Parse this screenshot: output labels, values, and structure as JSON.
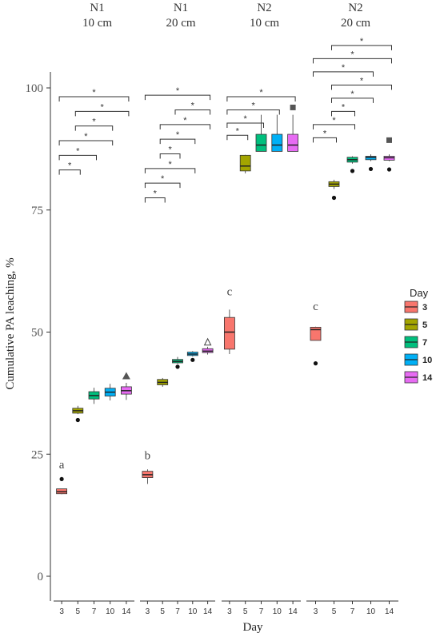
{
  "chart_data": {
    "type": "boxplot",
    "ylabel": "Cumulative PA leaching, %",
    "xlabel": "Day",
    "ylim": [
      0,
      100
    ],
    "yticks": [
      0,
      25,
      50,
      75,
      100
    ],
    "categories": [
      "3",
      "5",
      "7",
      "10",
      "14"
    ],
    "legend": {
      "title": "Day",
      "placement": "right",
      "entries": [
        "3",
        "5",
        "7",
        "10",
        "14"
      ]
    },
    "colors": {
      "3": "#F8766D",
      "5": "#A3A500",
      "7": "#00BF7D",
      "10": "#00B0F6",
      "14": "#E76BF3"
    },
    "panels": [
      {
        "title_line1": "N1",
        "title_line2": "10 cm",
        "boxes": [
          {
            "day": "3",
            "min": 16.8,
            "q1": 16.9,
            "median": 17.3,
            "q3": 17.9,
            "max": 17.9,
            "outliers": [
              19.9
            ]
          },
          {
            "day": "5",
            "min": 33.2,
            "q1": 33.4,
            "median": 33.9,
            "q3": 34.4,
            "max": 34.9,
            "outliers": [
              32.0
            ]
          },
          {
            "day": "7",
            "min": 35.3,
            "q1": 36.3,
            "median": 37.0,
            "q3": 37.8,
            "max": 38.6,
            "outliers": []
          },
          {
            "day": "10",
            "min": 36.0,
            "q1": 36.9,
            "median": 37.7,
            "q3": 38.5,
            "max": 39.4,
            "outliers": []
          },
          {
            "day": "14",
            "min": 36.1,
            "q1": 37.3,
            "median": 38.0,
            "q3": 38.8,
            "max": 39.6,
            "outliers": []
          }
        ],
        "markers": [
          {
            "day": "14",
            "y": 41.0,
            "shape": "triangle"
          }
        ],
        "letter": {
          "text": "a",
          "day": "3",
          "y": 22.1
        },
        "brackets": [
          {
            "from": "3",
            "to": "5",
            "y": 83.2,
            "label": "*"
          },
          {
            "from": "3",
            "to": "7",
            "y": 86.2,
            "label": "*"
          },
          {
            "from": "3",
            "to": "10",
            "y": 89.2,
            "label": "*"
          },
          {
            "from": "5",
            "to": "10",
            "y": 92.2,
            "label": "*"
          },
          {
            "from": "5",
            "to": "14",
            "y": 95.2,
            "label": "*"
          },
          {
            "from": "3",
            "to": "14",
            "y": 98.2,
            "label": "*"
          }
        ]
      },
      {
        "title_line1": "N1",
        "title_line2": "20 cm",
        "boxes": [
          {
            "day": "3",
            "min": 18.9,
            "q1": 20.2,
            "median": 20.8,
            "q3": 21.5,
            "max": 21.9,
            "outliers": []
          },
          {
            "day": "5",
            "min": 38.8,
            "q1": 39.2,
            "median": 39.7,
            "q3": 40.3,
            "max": 40.6,
            "outliers": []
          },
          {
            "day": "7",
            "min": 43.5,
            "q1": 43.7,
            "median": 44.0,
            "q3": 44.4,
            "max": 44.9,
            "outliers": [
              42.9
            ]
          },
          {
            "day": "10",
            "min": 45.0,
            "q1": 45.2,
            "median": 45.5,
            "q3": 45.9,
            "max": 46.1,
            "outliers": [
              44.3
            ]
          },
          {
            "day": "14",
            "min": 45.4,
            "q1": 45.8,
            "median": 46.1,
            "q3": 46.6,
            "max": 47.0,
            "outliers": []
          }
        ],
        "markers": [
          {
            "day": "14",
            "y": 48.0,
            "shape": "open-triangle"
          }
        ],
        "letter": {
          "text": "b",
          "day": "3",
          "y": 24.0
        },
        "brackets": [
          {
            "from": "3",
            "to": "5",
            "y": 77.5,
            "label": "*"
          },
          {
            "from": "3",
            "to": "7",
            "y": 80.5,
            "label": "*"
          },
          {
            "from": "3",
            "to": "10",
            "y": 83.5,
            "label": "*"
          },
          {
            "from": "5",
            "to": "7",
            "y": 86.5,
            "label": "*"
          },
          {
            "from": "5",
            "to": "10",
            "y": 89.5,
            "label": "*"
          },
          {
            "from": "5",
            "to": "14",
            "y": 92.5,
            "label": "*"
          },
          {
            "from": "7",
            "to": "14",
            "y": 95.5,
            "label": "*"
          },
          {
            "from": "3",
            "to": "14",
            "y": 98.5,
            "label": "*"
          }
        ]
      },
      {
        "title_line1": "N2",
        "title_line2": "10 cm",
        "boxes": [
          {
            "day": "3",
            "min": 45.5,
            "q1": 46.5,
            "median": 50.0,
            "q3": 53.0,
            "max": 54.6,
            "outliers": []
          },
          {
            "day": "5",
            "min": 82.5,
            "q1": 83.0,
            "median": 84.0,
            "q3": 86.2,
            "max": 86.3,
            "outliers": []
          },
          {
            "day": "7",
            "min": 87.0,
            "q1": 87.0,
            "median": 88.3,
            "q3": 90.5,
            "max": 94.5,
            "outliers": []
          },
          {
            "day": "10",
            "min": 87.0,
            "q1": 87.0,
            "median": 88.3,
            "q3": 90.5,
            "max": 94.5,
            "outliers": []
          },
          {
            "day": "14",
            "min": 87.0,
            "q1": 87.0,
            "median": 88.3,
            "q3": 90.5,
            "max": 94.5,
            "outliers": []
          }
        ],
        "markers": [
          {
            "day": "14",
            "y": 96.0,
            "shape": "square"
          }
        ],
        "letter": {
          "text": "c",
          "day": "3",
          "y": 57.5
        },
        "brackets": [
          {
            "from": "3",
            "to": "5",
            "y": 90.3,
            "label": "*"
          },
          {
            "from": "3",
            "to": "7",
            "y": 92.8,
            "label": "*"
          },
          {
            "from": "3",
            "to": "10",
            "y": 95.5,
            "label": "*"
          },
          {
            "from": "3",
            "to": "14",
            "y": 98.2,
            "label": "*"
          }
        ]
      },
      {
        "title_line1": "N2",
        "title_line2": "20 cm",
        "boxes": [
          {
            "day": "3",
            "min": 48.3,
            "q1": 48.3,
            "median": 50.5,
            "q3": 51.0,
            "max": 51.1,
            "outliers": [
              43.6
            ]
          },
          {
            "day": "5",
            "min": 79.3,
            "q1": 79.8,
            "median": 80.3,
            "q3": 80.8,
            "max": 81.2,
            "outliers": [
              77.5
            ]
          },
          {
            "day": "7",
            "min": 84.5,
            "q1": 84.8,
            "median": 85.3,
            "q3": 85.8,
            "max": 86.0,
            "outliers": [
              83.0
            ]
          },
          {
            "day": "10",
            "min": 85.0,
            "q1": 85.3,
            "median": 85.8,
            "q3": 86.0,
            "max": 86.4,
            "outliers": [
              83.4
            ]
          },
          {
            "day": "14",
            "min": 85.0,
            "q1": 85.2,
            "median": 85.7,
            "q3": 86.0,
            "max": 86.4,
            "outliers": [
              83.3
            ]
          }
        ],
        "markers": [
          {
            "day": "14",
            "y": 89.3,
            "shape": "square"
          }
        ],
        "letter": {
          "text": "c",
          "day": "3",
          "y": 54.5
        },
        "brackets": [
          {
            "from": "3",
            "to": "5",
            "y": 89.8,
            "label": "*"
          },
          {
            "from": "3",
            "to": "7",
            "y": 92.5,
            "label": "*"
          },
          {
            "from": "5",
            "to": "7",
            "y": 95.2,
            "label": "*"
          },
          {
            "from": "5",
            "to": "10",
            "y": 97.9,
            "label": "*"
          },
          {
            "from": "5",
            "to": "14",
            "y": 100.6,
            "label": "*"
          },
          {
            "from": "3",
            "to": "10",
            "y": 103.3,
            "label": "*"
          },
          {
            "from": "3",
            "to": "14",
            "y": 106.0,
            "label": "*"
          },
          {
            "from": "5",
            "to": "14",
            "y": 108.7,
            "label": "*"
          }
        ]
      }
    ]
  }
}
